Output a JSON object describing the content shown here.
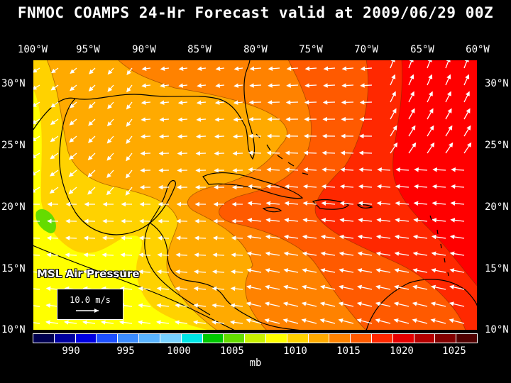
{
  "title": "FNMOC COAMPS 24-Hr Forecast valid at 2009/06/29 00Z",
  "longitude_labels": [
    "100°W",
    "95°W",
    "90°W",
    "85°W",
    "80°W",
    "75°W",
    "70°W",
    "65°W",
    "60°W"
  ],
  "latitude_labels": [
    "30°N",
    "25°N",
    "20°N",
    "15°N",
    "10°N"
  ],
  "field_label": "MSL Air Pressure",
  "vector_scale_label": "10.0 m/s",
  "colorbar": {
    "unit": "mb",
    "tick_labels": [
      "990",
      "995",
      "1000",
      "1005",
      "1010",
      "1015",
      "1020",
      "1025"
    ],
    "colors": [
      "#000050",
      "#0000a0",
      "#0000e0",
      "#1e50ff",
      "#3c8cff",
      "#5ab4ff",
      "#78d2ff",
      "#00e6e6",
      "#00c800",
      "#64dc00",
      "#c8f000",
      "#ffff00",
      "#ffd200",
      "#ffaa00",
      "#ff8200",
      "#ff5a00",
      "#ff2800",
      "#e60000",
      "#b40000",
      "#820000",
      "#500000"
    ]
  },
  "chart_data": {
    "type": "heatmap",
    "title": "FNMOC COAMPS 24-Hr Forecast valid at 2009/06/29 00Z",
    "field": "MSL Air Pressure",
    "unit": "mb",
    "xlim": [
      -100,
      -60
    ],
    "ylim": [
      10,
      32
    ],
    "levels_mb": [
      1006,
      1008,
      1010,
      1012,
      1014,
      1016,
      1018,
      1020
    ],
    "level_colors": {
      "1006": "#64dc00",
      "1008": "#ffff00",
      "1010": "#ffd200",
      "1012": "#ffaa00",
      "1014": "#ff8200",
      "1016": "#ff5a00",
      "1018": "#ff2800",
      "1020": "#ff0000"
    },
    "wind_vector_reference": "10.0 m/s"
  }
}
